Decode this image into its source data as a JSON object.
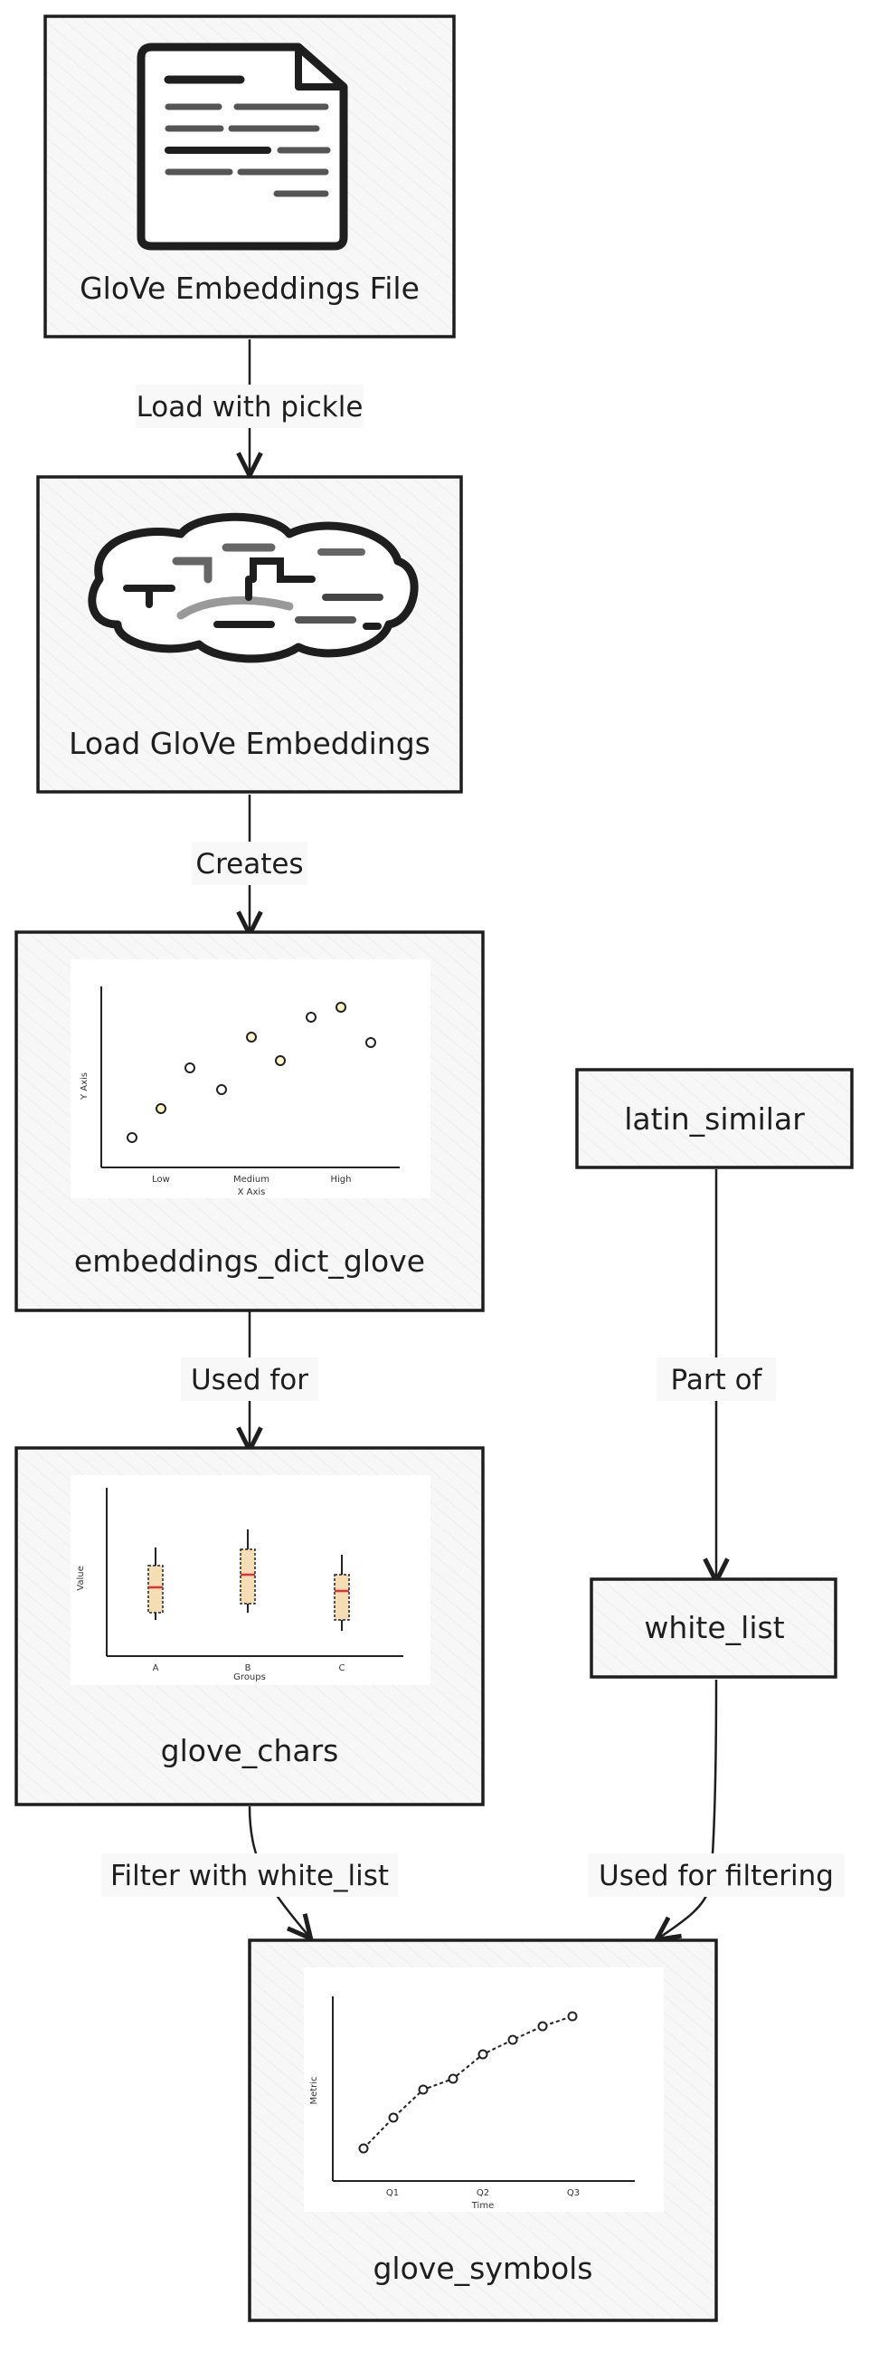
{
  "nodes": {
    "glove_file": "GloVe Embeddings File",
    "load_glove": "Load GloVe Embeddings",
    "embeddings_dict": "embeddings_dict_glove",
    "glove_chars": "glove_chars",
    "latin_similar": "latin_similar",
    "white_list": "white_list",
    "glove_symbols": "glove_symbols"
  },
  "edges": {
    "load_with_pickle": "Load with pickle",
    "creates": "Creates",
    "used_for": "Used for",
    "part_of": "Part of",
    "filter_with_white_list": "Filter with white_list",
    "used_for_filtering": "Used for filtering"
  },
  "thumbnails": {
    "scatter": {
      "ylabel": "Y Axis",
      "xlabel": "X Axis",
      "ticks": [
        "Low",
        "Medium",
        "High"
      ]
    },
    "boxplot": {
      "ylabel": "Value",
      "xlabel": "Groups",
      "ticks": [
        "A",
        "B",
        "C"
      ]
    },
    "line": {
      "ylabel": "Metric",
      "xlabel": "Time",
      "ticks": [
        "Q1",
        "Q2",
        "Q3"
      ]
    }
  },
  "icons": [
    "document-icon",
    "brain-icon",
    "scatter-chart-icon",
    "boxplot-chart-icon",
    "line-chart-icon"
  ],
  "colors": {
    "box_fill": "#f7f7f7",
    "stroke": "#1e1e1e",
    "box_red": "#e03131",
    "box_tan": "#f5deb3"
  }
}
